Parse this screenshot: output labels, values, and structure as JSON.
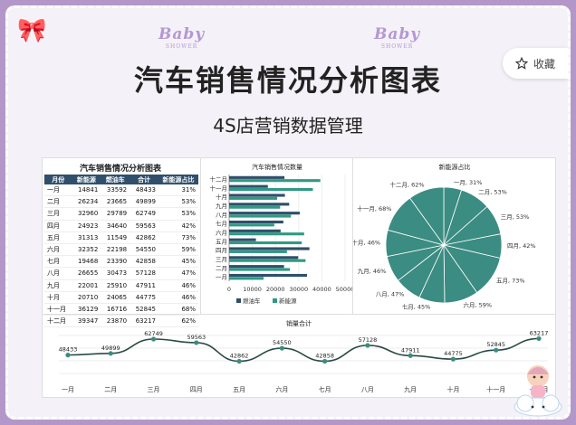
{
  "title": "汽车销售情况分析图表",
  "subtitle": "4S店营销数据管理",
  "deco_text": "Baby",
  "deco_sub": "SHOWER",
  "favorite_label": "收藏",
  "table": {
    "title": "汽车销售情况分析图表",
    "headers": [
      "月份",
      "新能源",
      "燃油车",
      "合计",
      "新能源占比"
    ],
    "rows": [
      [
        "一月",
        "14841",
        "33592",
        "48433",
        "31%"
      ],
      [
        "二月",
        "26234",
        "23665",
        "49899",
        "53%"
      ],
      [
        "三月",
        "32960",
        "29789",
        "62749",
        "53%"
      ],
      [
        "四月",
        "24923",
        "34640",
        "59563",
        "42%"
      ],
      [
        "五月",
        "31313",
        "11549",
        "42862",
        "73%"
      ],
      [
        "六月",
        "32352",
        "22198",
        "54550",
        "59%"
      ],
      [
        "七月",
        "19468",
        "23390",
        "42858",
        "45%"
      ],
      [
        "八月",
        "26655",
        "30473",
        "57128",
        "47%"
      ],
      [
        "九月",
        "22001",
        "25910",
        "47911",
        "46%"
      ],
      [
        "十月",
        "20710",
        "24065",
        "44775",
        "46%"
      ],
      [
        "十一月",
        "36129",
        "16716",
        "52845",
        "68%"
      ],
      [
        "十二月",
        "39347",
        "23870",
        "63217",
        "62%"
      ]
    ]
  },
  "colors": {
    "fuel": "#2f4f6b",
    "ev": "#2f9a84",
    "pie": "#3b8c82",
    "line": "#2a4a46"
  },
  "chart_data": [
    {
      "type": "bar",
      "title": "汽车销售情况数量",
      "categories": [
        "一月",
        "二月",
        "三月",
        "四月",
        "五月",
        "六月",
        "七月",
        "八月",
        "九月",
        "十月",
        "十一月",
        "十二月"
      ],
      "series": [
        {
          "name": "燃油车",
          "values": [
            33592,
            23665,
            29789,
            34640,
            11549,
            22198,
            23390,
            30473,
            25910,
            24065,
            16716,
            23870
          ]
        },
        {
          "name": "新能源",
          "values": [
            14841,
            26234,
            32960,
            24923,
            31313,
            32352,
            19468,
            26655,
            22001,
            20710,
            36129,
            39347
          ]
        }
      ],
      "xlim": [
        0,
        50000
      ],
      "xticks": [
        "0",
        "10000",
        "20000",
        "30000",
        "40000",
        "50000"
      ],
      "orientation": "horizontal"
    },
    {
      "type": "pie",
      "title": "新能源占比",
      "labels": [
        "一月",
        "二月",
        "三月",
        "四月",
        "五月",
        "六月",
        "七月",
        "八月",
        "九月",
        "十月",
        "十一月",
        "十二月"
      ],
      "values": [
        31,
        53,
        53,
        42,
        73,
        59,
        45,
        47,
        46,
        46,
        68,
        62
      ],
      "label_texts": [
        "一月, 31%",
        "二月, 53%",
        "三月, 53%",
        "四月, 42%",
        "五月, 73%",
        "六月, 59%",
        "七月, 45%",
        "八月, 47%",
        "九月, 46%",
        "十月, 46%",
        "十一月, 68%",
        "十二月, 62%"
      ]
    },
    {
      "type": "line",
      "title": "销量合计",
      "categories": [
        "一月",
        "二月",
        "三月",
        "四月",
        "五月",
        "六月",
        "七月",
        "八月",
        "九月",
        "十月",
        "十一月",
        "十二月"
      ],
      "values": [
        48433,
        49899,
        62749,
        59563,
        42862,
        54550,
        42858,
        57128,
        47911,
        44775,
        52845,
        63217
      ]
    }
  ]
}
